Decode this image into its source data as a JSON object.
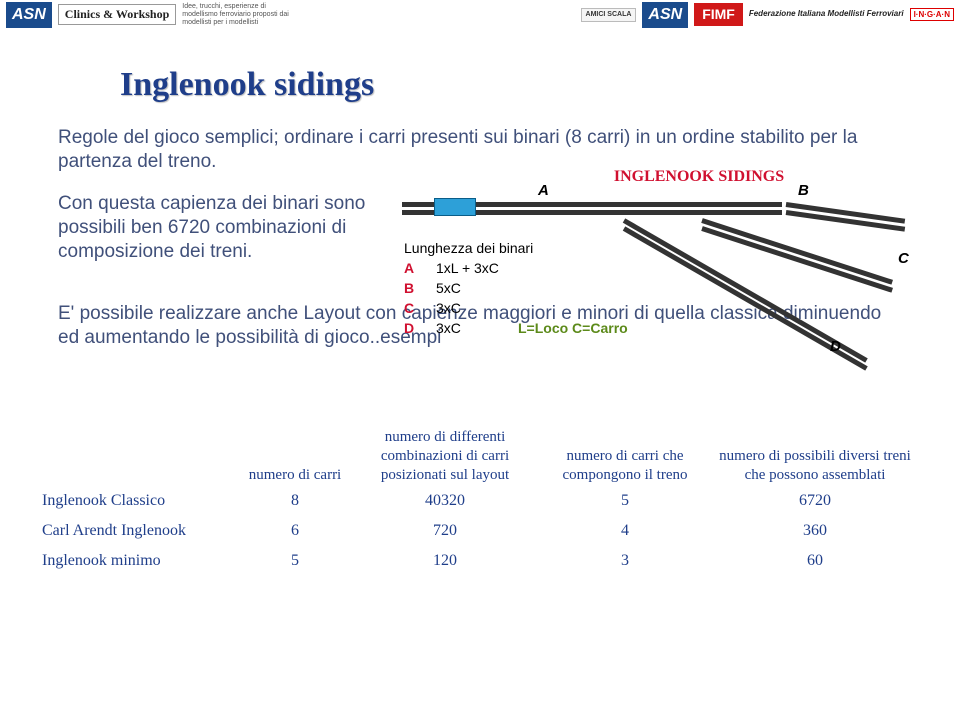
{
  "header": {
    "left_logo1": "ASN",
    "left_logo2": "Clinics &\nWorkshop",
    "left_sub": "Idee, trucchi, esperienze di modellismo ferroviario proposti dai modellisti per i modellisti",
    "right_amici": "AMICI SCALA",
    "right_asn": "ASN",
    "right_fimf": "FIMF",
    "right_fed": "Federazione Italiana\nModellisti Ferroviari",
    "right_inga": "I·N·G·A·N"
  },
  "title": "Inglenook sidings",
  "intro": "Regole del gioco semplici; ordinare i carri presenti sui binari (8 carri) in un ordine stabilito per la partenza del treno.",
  "para2": "Con questa capienza dei binari sono possibili ben 6720 combinazioni di composizione dei treni.",
  "para3": "E' possibile realizzare anche Layout con capienze maggiori e minori di quella classica diminuendo ed aumentando le possibilità di gioco..esempi",
  "diagram": {
    "title": "INGLENOOK SIDINGS",
    "label_a": "A",
    "label_b": "B",
    "label_c": "C",
    "label_d": "D",
    "legend_head": "Lunghezza dei binari",
    "rows": [
      {
        "k": "A",
        "v": "1xL + 3xC"
      },
      {
        "k": "B",
        "v": "5xC"
      },
      {
        "k": "C",
        "v": "3xC"
      },
      {
        "k": "D",
        "v": "3xC"
      }
    ],
    "legend_foot": "L=Loco   C=Carro",
    "track_color": "#333333",
    "loco_color": "#2da0d8",
    "title_color": "#d01030",
    "key_color": "#d01030",
    "foot_color": "#5c8a1a"
  },
  "table": {
    "headers": {
      "name": "",
      "n": "numero di carri",
      "comb": "numero di differenti combinazioni di carri posizionati sul layout",
      "comp": "numero di carri che compongono il treno",
      "poss": "numero di possibili diversi treni che possono assemblati"
    },
    "rows": [
      {
        "name": "Inglenook Classico",
        "n": "8",
        "comb": "40320",
        "comp": "5",
        "poss": "6720"
      },
      {
        "name": "Carl Arendt Inglenook",
        "n": "6",
        "comb": "720",
        "comp": "4",
        "poss": "360"
      },
      {
        "name": "Inglenook minimo",
        "n": "5",
        "comb": "120",
        "comp": "3",
        "poss": "60"
      }
    ],
    "text_color": "#1f3e8a",
    "header_fontsize": 15,
    "cell_fontsize": 16
  }
}
